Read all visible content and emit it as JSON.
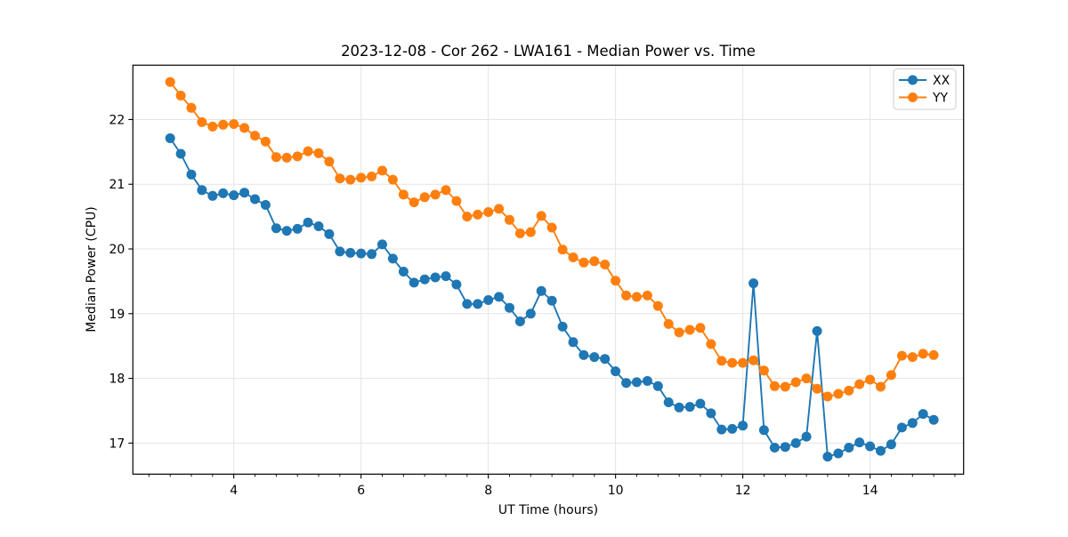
{
  "chart_data": {
    "type": "line",
    "title": "2023-12-08 - Cor 262 - LWA161 - Median Power vs. Time",
    "xlabel": "UT Time (hours)",
    "ylabel": "Median Power (CPU)",
    "xlim": [
      2.414,
      15.47
    ],
    "ylim": [
      16.52,
      22.84
    ],
    "grid": true,
    "legend_position": "upper right",
    "xticks": {
      "major": [
        4,
        6,
        8,
        10,
        12,
        14
      ],
      "labels": [
        "4",
        "6",
        "8",
        "10",
        "12",
        "14"
      ],
      "minor_step_hours": 0.3333
    },
    "yticks": {
      "major": [
        17,
        18,
        19,
        20,
        21,
        22
      ],
      "labels": [
        "17",
        "18",
        "19",
        "20",
        "21",
        "22"
      ]
    },
    "x": [
      3.0,
      3.167,
      3.333,
      3.5,
      3.667,
      3.833,
      4.0,
      4.167,
      4.333,
      4.5,
      4.667,
      4.833,
      5.0,
      5.167,
      5.333,
      5.5,
      5.667,
      5.833,
      6.0,
      6.167,
      6.333,
      6.5,
      6.667,
      6.833,
      7.0,
      7.167,
      7.333,
      7.5,
      7.667,
      7.833,
      8.0,
      8.167,
      8.333,
      8.5,
      8.667,
      8.833,
      9.0,
      9.167,
      9.333,
      9.5,
      9.667,
      9.833,
      10.0,
      10.167,
      10.333,
      10.5,
      10.667,
      10.833,
      11.0,
      11.167,
      11.333,
      11.5,
      11.667,
      11.833,
      12.0,
      12.167,
      12.333,
      12.5,
      12.667,
      12.833,
      13.0,
      13.167,
      13.333,
      13.5,
      13.667,
      13.833,
      14.0,
      14.167,
      14.333,
      14.5,
      14.667,
      14.833,
      15.0
    ],
    "series": [
      {
        "name": "XX",
        "color": "#1f77b4",
        "marker": "circle",
        "values": [
          21.71,
          21.47,
          21.15,
          20.91,
          20.82,
          20.86,
          20.83,
          20.87,
          20.77,
          20.68,
          20.32,
          20.28,
          20.31,
          20.41,
          20.35,
          20.23,
          19.96,
          19.94,
          19.93,
          19.92,
          20.07,
          19.85,
          19.65,
          19.48,
          19.53,
          19.56,
          19.58,
          19.45,
          19.15,
          19.15,
          19.21,
          19.26,
          19.09,
          18.88,
          19.0,
          19.35,
          19.2,
          18.8,
          18.56,
          18.36,
          18.33,
          18.3,
          18.11,
          17.93,
          17.94,
          17.96,
          17.88,
          17.63,
          17.55,
          17.56,
          17.61,
          17.46,
          17.21,
          17.22,
          17.27,
          19.47,
          17.2,
          16.93,
          16.94,
          17.0,
          17.1,
          18.73,
          16.79,
          16.84,
          16.93,
          17.01,
          16.95,
          16.88,
          16.98,
          17.24,
          17.31,
          17.45,
          17.36
        ]
      },
      {
        "name": "YY",
        "color": "#ff7f0e",
        "marker": "circle",
        "values": [
          22.58,
          22.37,
          22.18,
          21.96,
          21.89,
          21.92,
          21.93,
          21.87,
          21.75,
          21.66,
          21.42,
          21.41,
          21.43,
          21.51,
          21.48,
          21.35,
          21.09,
          21.07,
          21.1,
          21.12,
          21.21,
          21.07,
          20.84,
          20.72,
          20.8,
          20.84,
          20.91,
          20.74,
          20.5,
          20.53,
          20.57,
          20.62,
          20.45,
          20.24,
          20.26,
          20.51,
          20.33,
          19.99,
          19.87,
          19.79,
          19.81,
          19.76,
          19.51,
          19.28,
          19.26,
          19.28,
          19.12,
          18.84,
          18.71,
          18.75,
          18.78,
          18.53,
          18.27,
          18.24,
          18.24,
          18.28,
          18.12,
          17.88,
          17.87,
          17.94,
          18.0,
          17.84,
          17.72,
          17.76,
          17.81,
          17.91,
          17.98,
          17.87,
          18.05,
          18.35,
          18.33,
          18.38,
          18.36
        ]
      }
    ],
    "style": {
      "grid_color": "#e4e4e4",
      "spine_color": "#000000",
      "background": "#ffffff",
      "legend_border_color": "#cccccc"
    }
  }
}
